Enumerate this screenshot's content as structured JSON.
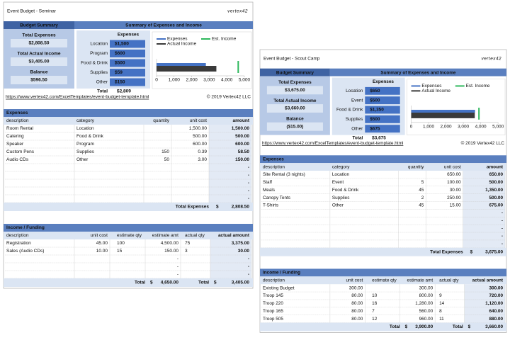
{
  "sheets": [
    {
      "title": "Event Budget - Seminar",
      "logo": "vertex42",
      "summary": {
        "header": "Budget Summary",
        "items": [
          {
            "label": "Total Expenses",
            "value": "$2,808.50"
          },
          {
            "label": "Total Actual Income",
            "value": "$3,405.00"
          },
          {
            "label": "Balance",
            "value": "$596.50"
          }
        ]
      },
      "overview": {
        "header": "Summary of Expenses and Income",
        "column": "Expenses",
        "rows": [
          {
            "label": "Location",
            "value": "$1,500"
          },
          {
            "label": "Program",
            "value": "$600"
          },
          {
            "label": "Food & Drink",
            "value": "$500"
          },
          {
            "label": "Supplies",
            "value": "$59"
          },
          {
            "label": "Other",
            "value": "$150"
          }
        ],
        "total_label": "Total",
        "total": "$2,809"
      },
      "chart": {
        "xlim": [
          0,
          5000
        ],
        "xticks": [
          0,
          {
            "value": 1000,
            "label": "1,000"
          },
          {
            "value": 2000,
            "label": "2,000"
          },
          {
            "value": 3000,
            "label": "3,000"
          },
          {
            "value": 4000,
            "label": "4,000"
          },
          {
            "value": 5000,
            "label": "5,000"
          }
        ],
        "series": [
          {
            "name": "Expenses",
            "color": "#4472c4",
            "value": 2808.5
          },
          {
            "name": "Est. Income",
            "color": "#2eb85c",
            "value": 4650
          },
          {
            "name": "Actual Income",
            "color": "#3a3a3a",
            "value": 3405
          }
        ]
      },
      "url": "https://www.vertex42.com/ExcelTemplates/event-budget-template.html",
      "copyright": "© 2019 Vertex42 LLC",
      "expenses": {
        "header": "Expenses",
        "columns": [
          "description",
          "category",
          "quantity",
          "unit cost",
          "amount"
        ],
        "rows": [
          [
            "Room Rental",
            "Location",
            null,
            "1,500.00",
            "1,500.00"
          ],
          [
            "Catering",
            "Food & Drink",
            null,
            "500.00",
            "500.00"
          ],
          [
            "Speaker",
            "Program",
            null,
            "600.00",
            "600.00"
          ],
          [
            "Custom Pens",
            "Supplies",
            "150",
            "0.39",
            "58.50"
          ],
          [
            "Audio CDs",
            "Other",
            "50",
            "3.00",
            "150.00"
          ],
          [
            null,
            null,
            null,
            null,
            "-"
          ],
          [
            null,
            null,
            null,
            null,
            "-"
          ],
          [
            null,
            null,
            null,
            null,
            "-"
          ],
          [
            null,
            null,
            null,
            null,
            "-"
          ],
          [
            null,
            null,
            null,
            null,
            "-"
          ]
        ],
        "totals": [
          "Total Expenses",
          "$",
          "2,808.50"
        ]
      },
      "income": {
        "header": "Income / Funding",
        "columns": [
          "description",
          "unit cost",
          "estimate qty",
          "estimate amt",
          "actual qty",
          "actual amount"
        ],
        "rows": [
          [
            "Registration",
            "45.00",
            "100",
            "4,500.00",
            "75",
            "3,375.00"
          ],
          [
            "Sales (Audio CDs)",
            "10.00",
            "15",
            "150.00",
            "3",
            "30.00"
          ],
          [
            null,
            null,
            null,
            "-",
            null,
            "-"
          ],
          [
            null,
            null,
            null,
            "-",
            null,
            "-"
          ],
          [
            null,
            null,
            null,
            "-",
            null,
            "-"
          ]
        ],
        "totals": [
          "Total",
          "$",
          "4,650.00",
          "Total",
          "$",
          "3,405.00"
        ]
      }
    },
    {
      "title": "Event Budget - Scout Camp",
      "logo": "vertex42",
      "summary": {
        "header": "Budget Summary",
        "items": [
          {
            "label": "Total Expenses",
            "value": "$3,675.00"
          },
          {
            "label": "Total Actual Income",
            "value": "$3,660.00"
          },
          {
            "label": "Balance",
            "value": "($15.00)"
          }
        ]
      },
      "overview": {
        "header": "Summary of Expenses and Income",
        "column": "Expenses",
        "rows": [
          {
            "label": "Location",
            "value": "$650"
          },
          {
            "label": "Event",
            "value": "$500"
          },
          {
            "label": "Food & Drink",
            "value": "$1,350"
          },
          {
            "label": "Supplies",
            "value": "$500"
          },
          {
            "label": "Other",
            "value": "$675"
          }
        ],
        "total_label": "Total",
        "total": "$3,675"
      },
      "chart": {
        "xlim": [
          0,
          5000
        ],
        "xticks": [
          0,
          {
            "value": 1000,
            "label": "1,000"
          },
          {
            "value": 2000,
            "label": "2,000"
          },
          {
            "value": 3000,
            "label": "3,000"
          },
          {
            "value": 4000,
            "label": "4,000"
          },
          {
            "value": 5000,
            "label": "5,000"
          }
        ],
        "series": [
          {
            "name": "Expenses",
            "color": "#4472c4",
            "value": 3675
          },
          {
            "name": "Est. Income",
            "color": "#2eb85c",
            "value": 3900
          },
          {
            "name": "Actual Income",
            "color": "#3a3a3a",
            "value": 3660
          }
        ]
      },
      "url": "https://www.vertex42.com/ExcelTemplates/event-budget-template.html",
      "copyright": "© 2019 Vertex42 LLC",
      "expenses": {
        "header": "Expenses",
        "columns": [
          "description",
          "category",
          "quantity",
          "unit cost",
          "amount"
        ],
        "rows": [
          [
            "Site Rental (3 nights)",
            "Location",
            null,
            "650.00",
            "650.00"
          ],
          [
            "Staff",
            "Event",
            "5",
            "100.00",
            "500.00"
          ],
          [
            "Meals",
            "Food & Drink",
            "45",
            "30.00",
            "1,350.00"
          ],
          [
            "Canopy Tents",
            "Supplies",
            "2",
            "250.00",
            "500.00"
          ],
          [
            "T-Shirts",
            "Other",
            "45",
            "15.00",
            "675.00"
          ],
          [
            null,
            null,
            null,
            null,
            "-"
          ],
          [
            null,
            null,
            null,
            null,
            "-"
          ],
          [
            null,
            null,
            null,
            null,
            "-"
          ],
          [
            null,
            null,
            null,
            null,
            "-"
          ],
          [
            null,
            null,
            null,
            null,
            "-"
          ]
        ],
        "totals": [
          "Total Expenses",
          "$",
          "3,675.00"
        ]
      },
      "income": {
        "header": "Income / Funding",
        "columns": [
          "description",
          "unit cost",
          "estimate qty",
          "estimate amt",
          "actual qty",
          "actual amount"
        ],
        "rows": [
          [
            "Existing Budget",
            "300.00",
            null,
            "300.00",
            null,
            "300.00"
          ],
          [
            "Troop 145",
            "80.00",
            "10",
            "800.00",
            "9",
            "720.00"
          ],
          [
            "Troop 220",
            "80.00",
            "16",
            "1,280.00",
            "14",
            "1,120.00"
          ],
          [
            "Troop 165",
            "80.00",
            "7",
            "560.00",
            "8",
            "640.00"
          ],
          [
            "Troop 505",
            "80.00",
            "12",
            "960.00",
            "11",
            "880.00"
          ]
        ],
        "totals": [
          "Total",
          "$",
          "3,900.00",
          "Total",
          "$",
          "3,660.00"
        ]
      }
    }
  ]
}
